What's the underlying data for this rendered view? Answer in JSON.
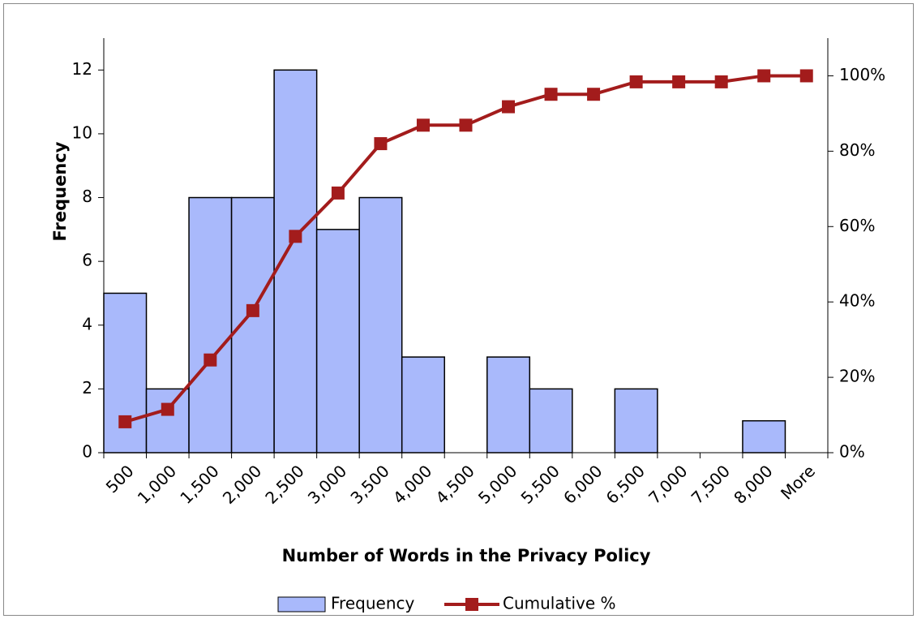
{
  "chart_data": {
    "type": "histogram_pareto",
    "x_label": "Number of Words in the Privacy Policy",
    "y_label": "Frequency",
    "categories": [
      "500",
      "1,000",
      "1,500",
      "2,000",
      "2,500",
      "3,000",
      "3,500",
      "4,000",
      "4,500",
      "5,000",
      "5,500",
      "6,000",
      "6,500",
      "7,000",
      "7,500",
      "8,000",
      "More"
    ],
    "series": [
      {
        "name": "Frequency",
        "type": "bar",
        "color": "#a9b9fb",
        "values": [
          5,
          2,
          8,
          8,
          12,
          7,
          8,
          3,
          0,
          3,
          2,
          0,
          2,
          0,
          0,
          1,
          0
        ]
      },
      {
        "name": "Cumulative %",
        "type": "line",
        "axis": "y2",
        "color": "#a31c1c",
        "values": [
          8.2,
          11.5,
          24.6,
          37.7,
          57.4,
          68.9,
          82.0,
          86.9,
          86.9,
          91.8,
          95.1,
          95.1,
          98.4,
          98.4,
          98.4,
          100,
          100
        ]
      }
    ],
    "ylim": [
      0,
      13
    ],
    "yticks": [
      0,
      2,
      4,
      6,
      8,
      10,
      12
    ],
    "y2lim": [
      0,
      110
    ],
    "y2ticks": [
      {
        "value": 0,
        "label": "0%"
      },
      {
        "value": 20,
        "label": "20%"
      },
      {
        "value": 40,
        "label": "40%"
      },
      {
        "value": 60,
        "label": "60%"
      },
      {
        "value": 80,
        "label": "80%"
      },
      {
        "value": 100,
        "label": "100%"
      }
    ],
    "legend": "bottom"
  }
}
